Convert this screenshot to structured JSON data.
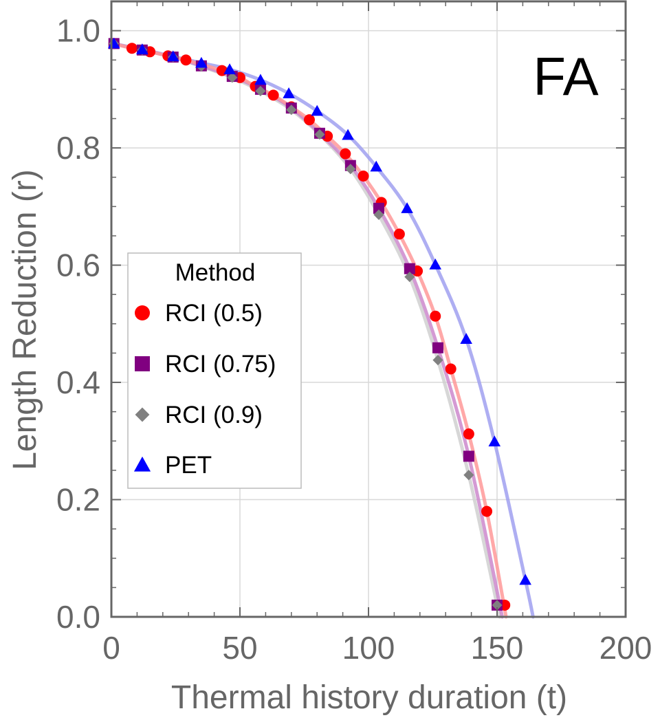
{
  "chart_data": {
    "type": "scatter",
    "panel_label": "FA",
    "xlabel": "Thermal history duration (t)",
    "ylabel": "Length Reduction (r)",
    "xlim": [
      0,
      200
    ],
    "ylim": [
      0,
      1.05
    ],
    "x_ticks": [
      0,
      50,
      100,
      150,
      200
    ],
    "x_tick_labels": [
      "0",
      "50",
      "100",
      "150",
      "200"
    ],
    "y_ticks": [
      0,
      0.2,
      0.4,
      0.6,
      0.8,
      1.0
    ],
    "y_tick_labels": [
      "0.0",
      "0.2",
      "0.4",
      "0.6",
      "0.8",
      "1.0"
    ],
    "grid": true,
    "legend": {
      "title": "Method",
      "position": "center-left"
    },
    "series": [
      {
        "name": "RCI (0.5)",
        "marker": "circle",
        "color": "#ff0000",
        "fit_color": "#ff9999",
        "points": [
          [
            1,
            0.978
          ],
          [
            8,
            0.97
          ],
          [
            15,
            0.964
          ],
          [
            22,
            0.957
          ],
          [
            29,
            0.95
          ],
          [
            43,
            0.932
          ],
          [
            50,
            0.92
          ],
          [
            56,
            0.905
          ],
          [
            63,
            0.89
          ],
          [
            70,
            0.87
          ],
          [
            77,
            0.848
          ],
          [
            84,
            0.82
          ],
          [
            91,
            0.79
          ],
          [
            98,
            0.752
          ],
          [
            105,
            0.707
          ],
          [
            112,
            0.653
          ],
          [
            119,
            0.59
          ],
          [
            126,
            0.513
          ],
          [
            132,
            0.423
          ],
          [
            139,
            0.312
          ],
          [
            146,
            0.18
          ],
          [
            153,
            0.02
          ]
        ],
        "fit_end": 153.5
      },
      {
        "name": "RCI (0.75)",
        "marker": "square",
        "color": "#800080",
        "fit_color": "#cc88cc",
        "points": [
          [
            1,
            0.978
          ],
          [
            12,
            0.967
          ],
          [
            24,
            0.955
          ],
          [
            35,
            0.94
          ],
          [
            47,
            0.922
          ],
          [
            58,
            0.9
          ],
          [
            70,
            0.868
          ],
          [
            81,
            0.825
          ],
          [
            93,
            0.77
          ],
          [
            104,
            0.697
          ],
          [
            116,
            0.594
          ],
          [
            127,
            0.459
          ],
          [
            139,
            0.274
          ],
          [
            150,
            0.02
          ]
        ],
        "fit_end": 152
      },
      {
        "name": "RCI (0.9)",
        "marker": "diamond",
        "color": "#808080",
        "fit_color": "#d0d0d0",
        "points": [
          [
            1,
            0.978
          ],
          [
            12,
            0.967
          ],
          [
            24,
            0.955
          ],
          [
            35,
            0.939
          ],
          [
            47,
            0.92
          ],
          [
            58,
            0.897
          ],
          [
            70,
            0.865
          ],
          [
            81,
            0.823
          ],
          [
            93,
            0.764
          ],
          [
            104,
            0.686
          ],
          [
            116,
            0.58
          ],
          [
            127,
            0.438
          ],
          [
            139,
            0.242
          ],
          [
            150,
            0.02
          ]
        ],
        "fit_end": 151
      },
      {
        "name": "PET",
        "marker": "triangle",
        "color": "#0000ff",
        "fit_color": "#a0a0f0",
        "points": [
          [
            1,
            0.978
          ],
          [
            12,
            0.968
          ],
          [
            24,
            0.956
          ],
          [
            35,
            0.945
          ],
          [
            46,
            0.934
          ],
          [
            58,
            0.916
          ],
          [
            69,
            0.893
          ],
          [
            80,
            0.863
          ],
          [
            92,
            0.822
          ],
          [
            103,
            0.768
          ],
          [
            115,
            0.697
          ],
          [
            126,
            0.601
          ],
          [
            138,
            0.474
          ],
          [
            149,
            0.299
          ],
          [
            161,
            0.063
          ]
        ],
        "fit_end": 164
      }
    ]
  }
}
